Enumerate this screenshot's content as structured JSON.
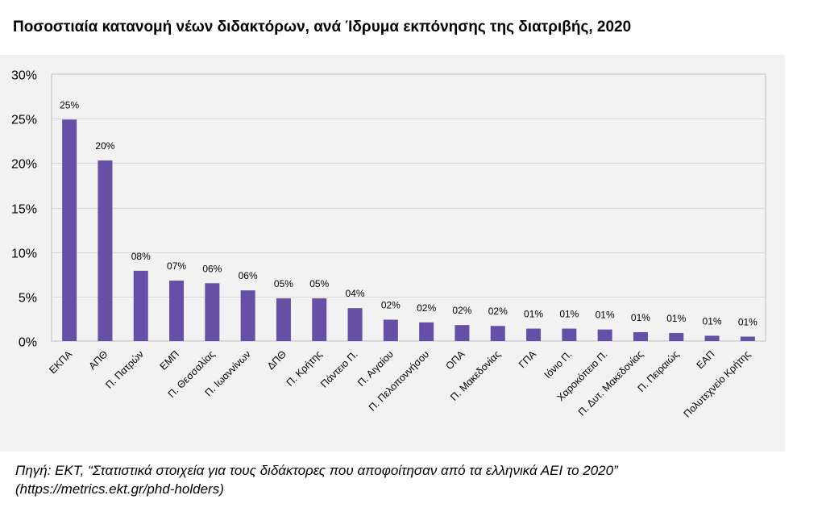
{
  "title": "Ποσοστιαία κατανομή νέων διδακτόρων, ανά Ίδρυμα εκπόνησης της διατριβής, 2020",
  "source": {
    "line1": "Πηγή: ΕΚΤ, “Στατιστικά στοιχεία για τους διδάκτορες που αποφοίτησαν από τα ελληνικά ΑΕΙ το 2020”",
    "line2": "(https://metrics.ekt.gr/phd-holders)"
  },
  "colors": {
    "bar": "#6650a7",
    "panel": "#f2f2f2",
    "grid": "#d9d9d9",
    "axis": "#bfbfbf",
    "text": "#000000"
  },
  "chart_data": {
    "type": "bar",
    "title": "Ποσοστιαία κατανομή νέων διδακτόρων, ανά Ίδρυμα εκπόνησης της διατριβής, 2020",
    "xlabel": "",
    "ylabel": "",
    "ylim": [
      0,
      30
    ],
    "yticks": [
      "0%",
      "5%",
      "10%",
      "15%",
      "20%",
      "25%",
      "30%"
    ],
    "grid": true,
    "categories": [
      "ΕΚΠΑ",
      "ΑΠΘ",
      "Π. Πατρών",
      "ΕΜΠ",
      "Π. Θεσσαλίας",
      "Π. Ιωαννίνων",
      "ΔΠΘ",
      "Π. Κρήτης",
      "Πάντειο Π.",
      "Π. Αιγαίου",
      "Π. Πελοποννήσου",
      "ΟΠΑ",
      "Π. Μακεδονίας",
      "ΓΠΑ",
      "Ιόνιο Π.",
      "Χαροκόπειο Π.",
      "Π. Δυτ. Μακεδονίας",
      "Π. Πειραιώς",
      "ΕΑΠ",
      "Πολυτεχνείο Κρήτης"
    ],
    "values": [
      24.9,
      20.3,
      7.9,
      6.8,
      6.5,
      5.7,
      4.8,
      4.8,
      3.7,
      2.4,
      2.1,
      1.8,
      1.7,
      1.4,
      1.4,
      1.3,
      1.0,
      0.9,
      0.6,
      0.5
    ],
    "data_labels": [
      "25%",
      "20%",
      "08%",
      "07%",
      "06%",
      "06%",
      "05%",
      "05%",
      "04%",
      "02%",
      "02%",
      "02%",
      "02%",
      "01%",
      "01%",
      "01%",
      "01%",
      "01%",
      "01%",
      "01%"
    ]
  }
}
